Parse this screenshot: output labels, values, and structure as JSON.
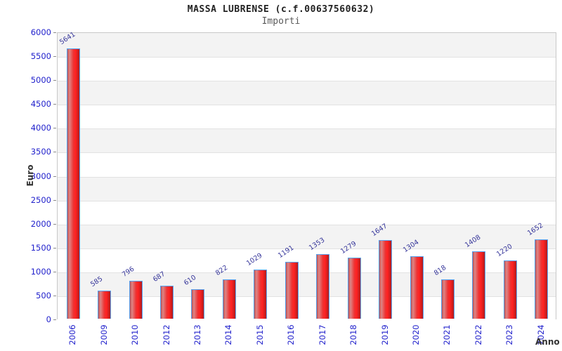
{
  "header": {
    "title": "MASSA LUBRENSE (c.f.00637560632)",
    "subtitle": "Importi"
  },
  "chart_data": {
    "type": "bar",
    "title": "MASSA LUBRENSE (c.f.00637560632)",
    "subtitle": "Importi",
    "xlabel": "Anno",
    "ylabel": "Euro",
    "categories": [
      "2006",
      "2009",
      "2010",
      "2012",
      "2013",
      "2014",
      "2015",
      "2016",
      "2017",
      "2018",
      "2019",
      "2020",
      "2021",
      "2022",
      "2023",
      "2024"
    ],
    "values": [
      5641,
      585,
      796,
      687,
      610,
      822,
      1029,
      1191,
      1353,
      1279,
      1647,
      1304,
      818,
      1408,
      1220,
      1652
    ],
    "ylim": [
      0,
      6000
    ],
    "ytick_step": 500,
    "grid": true,
    "legend": "none",
    "colors": {
      "tick_label": "#2222cc",
      "value_label": "#333399",
      "bar_border": "#55a2f0",
      "bar_gradient": [
        "#c05050",
        "#dd8585",
        "#ee3333",
        "#ff2222",
        "#b31b1b"
      ],
      "band_gray": "#f3f3f3",
      "band_white": "#ffffff",
      "gridline": "#e2e2e2",
      "axis_title": "#333333",
      "title": "#222222",
      "subtitle": "#5a5a5a"
    }
  }
}
